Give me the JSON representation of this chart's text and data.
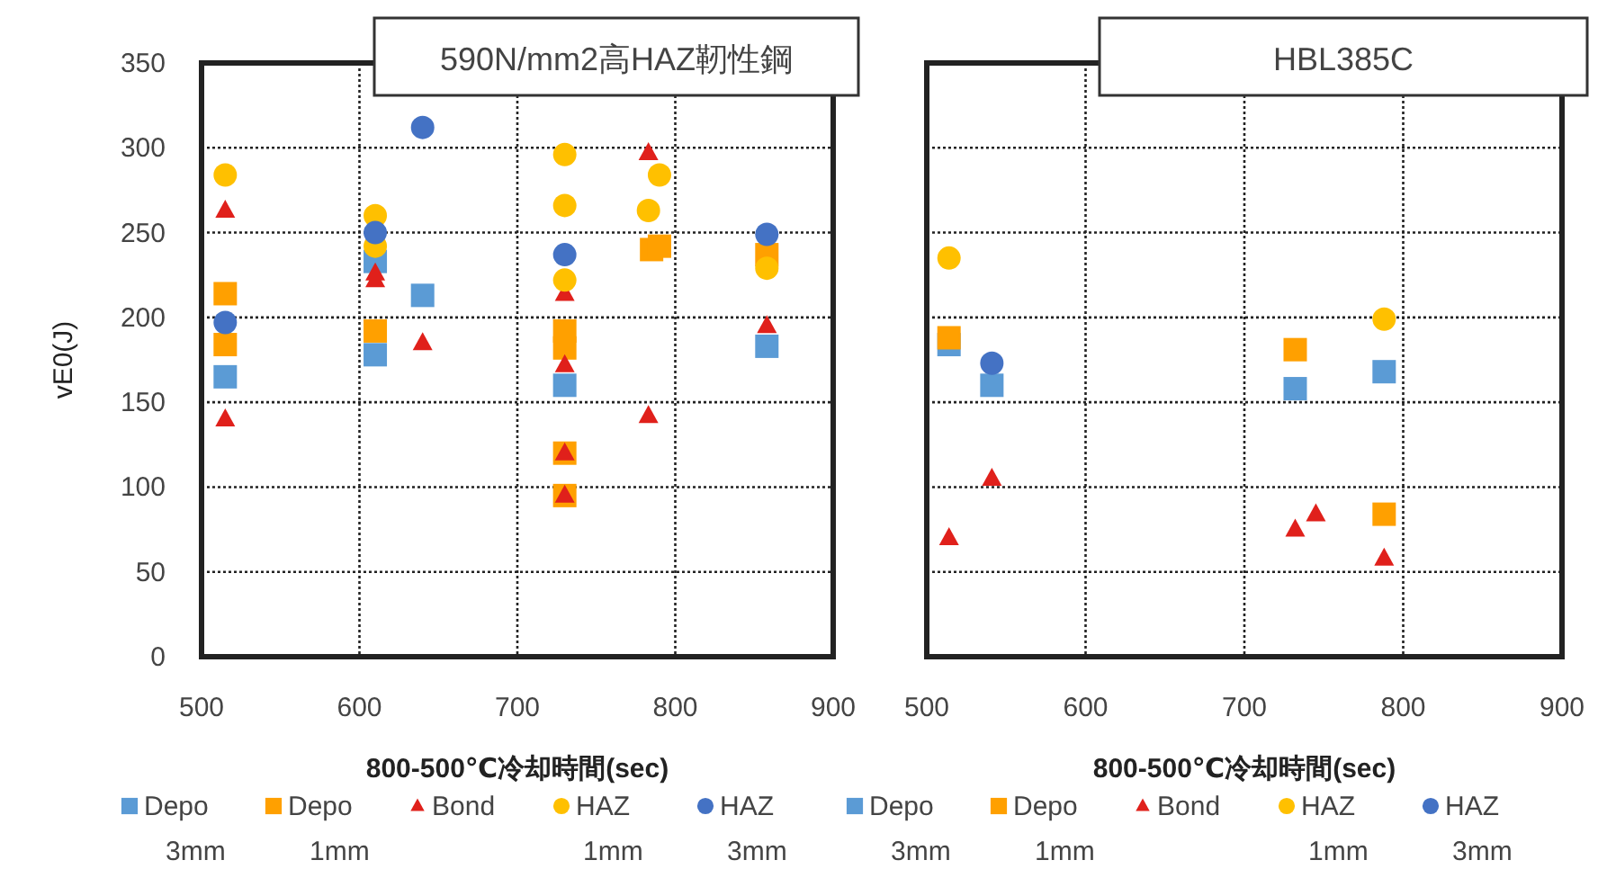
{
  "chart_data": [
    {
      "type": "scatter",
      "title": "590N/mm2高HAZ靭性鋼",
      "xlabel": "800-500℃冷却時間(sec)",
      "ylabel": "vE0(J)",
      "xlim": [
        500,
        900
      ],
      "xticks": [
        500,
        600,
        700,
        800,
        900
      ],
      "ylim": [
        0,
        350
      ],
      "yticks": [
        0,
        50,
        100,
        150,
        200,
        250,
        300,
        350
      ],
      "grid": true,
      "legend": "bottom",
      "series": [
        {
          "name": "Depo 3mm",
          "color": "#5b9bd5",
          "marker": "square",
          "x": [
            515,
            610,
            610,
            640,
            730,
            858
          ],
          "values": [
            165,
            178,
            233,
            213,
            160,
            183
          ]
        },
        {
          "name": "Depo 1mm",
          "color": "#ffa000",
          "marker": "square",
          "x": [
            515,
            515,
            610,
            730,
            730,
            730,
            730,
            785,
            790,
            858
          ],
          "values": [
            214,
            184,
            192,
            192,
            182,
            120,
            95,
            240,
            242,
            237
          ]
        },
        {
          "name": "Bond",
          "color": "#e0201b",
          "marker": "triangle",
          "x": [
            515,
            515,
            610,
            610,
            640,
            730,
            730,
            730,
            730,
            783,
            783,
            858
          ],
          "values": [
            263,
            140,
            222,
            226,
            185,
            214,
            172,
            120,
            95,
            297,
            142,
            195
          ]
        },
        {
          "name": "HAZ 1mm",
          "color": "#ffc000",
          "marker": "circle",
          "x": [
            515,
            610,
            610,
            730,
            730,
            730,
            790,
            783,
            858
          ],
          "values": [
            284,
            260,
            242,
            296,
            266,
            222,
            284,
            263,
            229
          ]
        },
        {
          "name": "HAZ 3mm",
          "color": "#4472c4",
          "marker": "circle",
          "x": [
            515,
            610,
            640,
            730,
            858
          ],
          "values": [
            197,
            250,
            312,
            237,
            249
          ]
        }
      ]
    },
    {
      "type": "scatter",
      "title": "HBL385C",
      "xlabel": "800-500℃冷却時間(sec)",
      "xlim": [
        500,
        900
      ],
      "xticks": [
        500,
        600,
        700,
        800,
        900
      ],
      "ylim": [
        0,
        350
      ],
      "yticks": [
        0,
        50,
        100,
        150,
        200,
        250,
        300,
        350
      ],
      "tick_labels": "x",
      "grid": true,
      "legend": "bottom",
      "series": [
        {
          "name": "Depo 3mm",
          "color": "#5b9bd5",
          "marker": "square",
          "x": [
            514,
            541,
            732,
            788
          ],
          "values": [
            184,
            160,
            158,
            168
          ]
        },
        {
          "name": "Depo 1mm",
          "color": "#ffa000",
          "marker": "square",
          "x": [
            514,
            732,
            788
          ],
          "values": [
            188,
            181,
            84
          ]
        },
        {
          "name": "Bond",
          "color": "#e0201b",
          "marker": "triangle",
          "x": [
            514,
            541,
            732,
            745,
            788
          ],
          "values": [
            70,
            105,
            75,
            84,
            58
          ]
        },
        {
          "name": "HAZ 1mm",
          "color": "#ffc000",
          "marker": "circle",
          "x": [
            514,
            788
          ],
          "values": [
            235,
            199
          ]
        },
        {
          "name": "HAZ 3mm",
          "color": "#4472c4",
          "marker": "circle",
          "x": [
            541
          ],
          "values": [
            173
          ]
        }
      ]
    }
  ]
}
